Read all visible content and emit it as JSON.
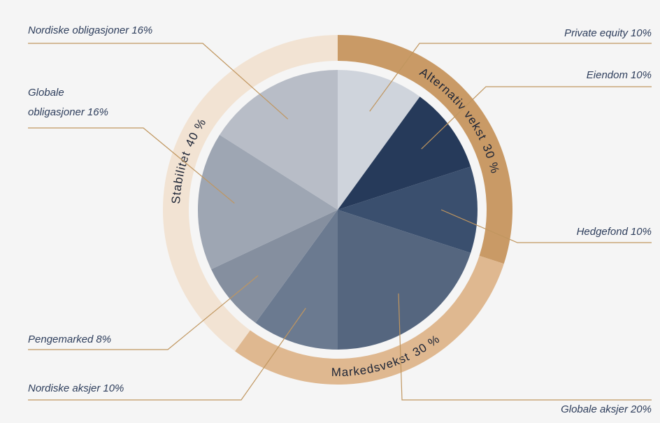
{
  "chart_data": {
    "type": "pie",
    "categories": [
      "Private equity",
      "Eiendom",
      "Hedgefond",
      "Globale aksjer",
      "Nordiske aksjer",
      "Pengemarked",
      "Globale obligasjoner",
      "Nordiske obligasjoner"
    ],
    "values": [
      10,
      10,
      10,
      20,
      10,
      8,
      16,
      16
    ],
    "value_labels": [
      "10%",
      "10%",
      "10%",
      "20%",
      "10%",
      "8%",
      "16%",
      "16%"
    ],
    "colors": [
      "#cfd4dc",
      "#263a5a",
      "#3a4f6e",
      "#55667f",
      "#6b7a90",
      "#858f9f",
      "#9ea6b3",
      "#b8bdc7"
    ],
    "groups": {
      "names": [
        "Alternativ vekst",
        "Markedsvekst",
        "Stabilitet"
      ],
      "values": [
        30,
        30,
        40
      ],
      "value_labels": [
        "30 %",
        "30 %",
        "40 %"
      ],
      "colors": [
        "#c99a66",
        "#dfb890",
        "#f2e3d3"
      ]
    }
  }
}
